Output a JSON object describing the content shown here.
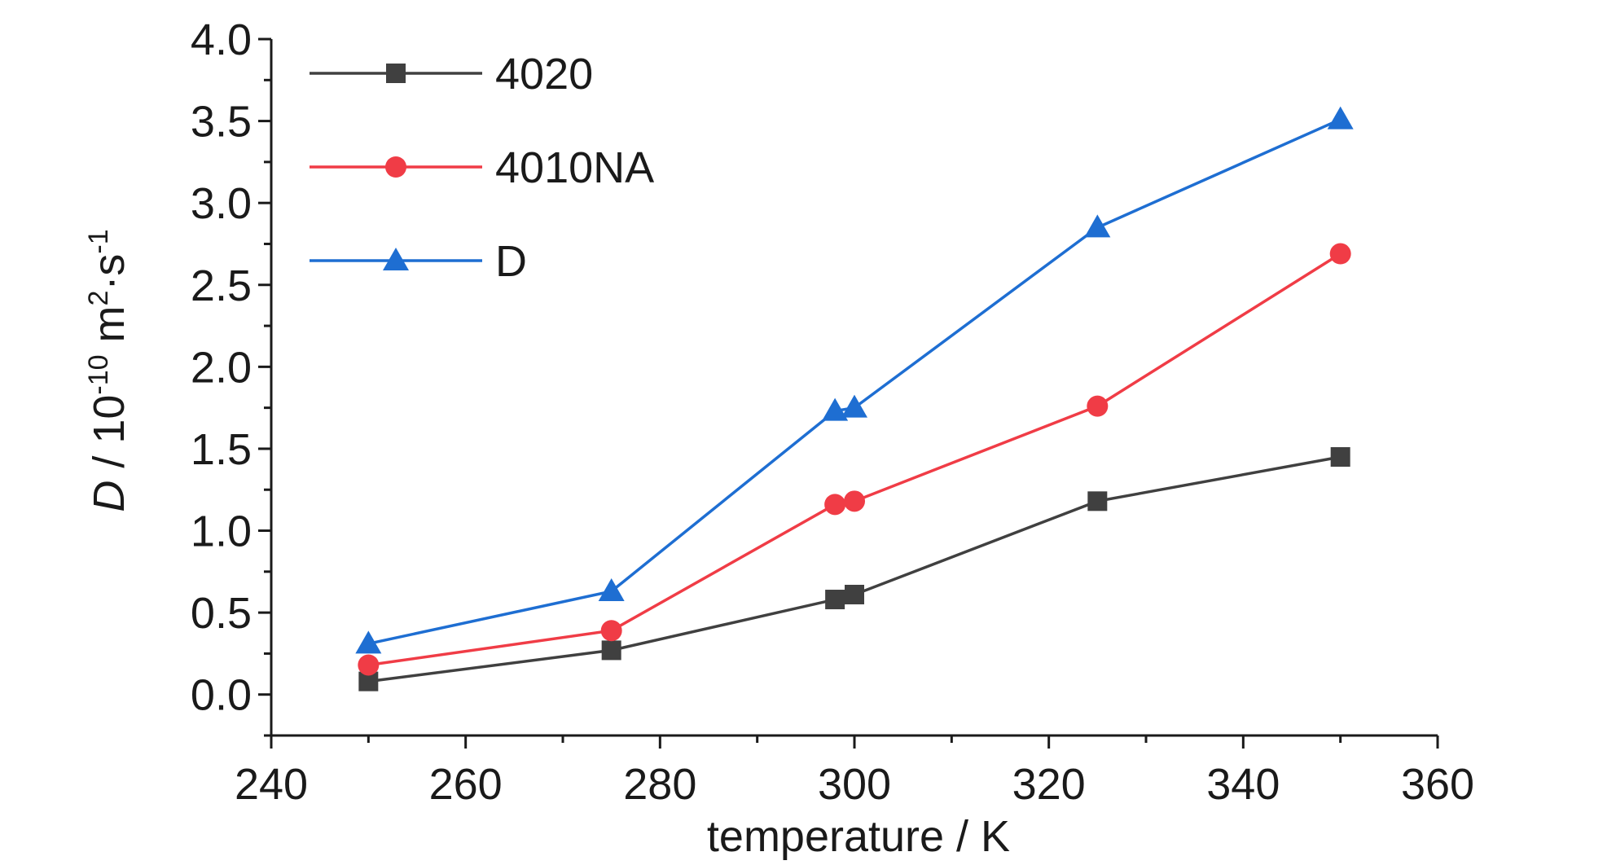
{
  "chart_data": {
    "type": "line",
    "xlabel": "temperature / K",
    "ylabel": {
      "symbol": "D",
      "separator": " / 10",
      "exp1": "-10",
      "unit1": " m",
      "exp2": "2",
      "unit2": "·s",
      "exp3": "-1"
    },
    "xlim": [
      240,
      360
    ],
    "ylim": [
      -0.25,
      4.0
    ],
    "x_ticks": [
      240,
      260,
      280,
      300,
      320,
      340,
      360
    ],
    "x_tick_labels": [
      "240",
      "260",
      "280",
      "300",
      "320",
      "340",
      "360"
    ],
    "y_ticks": [
      0.0,
      0.5,
      1.0,
      1.5,
      2.0,
      2.5,
      3.0,
      3.5,
      4.0
    ],
    "y_tick_labels": [
      "0.0",
      "0.5",
      "1.0",
      "1.5",
      "2.0",
      "2.5",
      "3.0",
      "3.5",
      "4.0"
    ],
    "x": [
      250,
      275,
      298,
      300,
      325,
      350
    ],
    "series": [
      {
        "name": "4020",
        "marker": "square",
        "color": "#404040",
        "values": [
          0.08,
          0.27,
          0.58,
          0.61,
          1.18,
          1.45
        ]
      },
      {
        "name": "4010NA",
        "marker": "circle",
        "color": "#f03c46",
        "values": [
          0.18,
          0.39,
          1.16,
          1.18,
          1.76,
          2.69
        ]
      },
      {
        "name": "D",
        "marker": "triangle",
        "color": "#1e6ed2",
        "values": [
          0.31,
          0.63,
          1.73,
          1.75,
          2.85,
          3.51
        ]
      }
    ],
    "grid": false,
    "legend_position": "top-left"
  }
}
